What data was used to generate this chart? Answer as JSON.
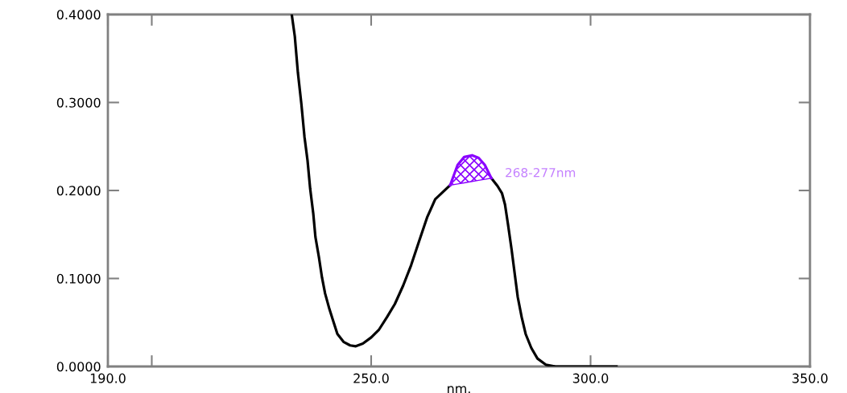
{
  "chart_data": {
    "type": "line",
    "xlabel": "nm.",
    "xlim": [
      190,
      350
    ],
    "xticks": [
      {
        "value": 190,
        "label": "190.0"
      },
      {
        "value": 200,
        "label": null
      },
      {
        "value": 250,
        "label": "250.0"
      },
      {
        "value": 300,
        "label": "300.0"
      },
      {
        "value": 350,
        "label": "350.0"
      }
    ],
    "ylim": [
      0,
      0.4
    ],
    "yticks": [
      {
        "value": 0,
        "label": "0.0000"
      },
      {
        "value": 0.1,
        "label": "0.1000"
      },
      {
        "value": 0.2,
        "label": "0.2000"
      },
      {
        "value": 0.3,
        "label": "0.3000"
      },
      {
        "value": 0.4,
        "label": "0.4000"
      }
    ],
    "grid": false,
    "legend": false,
    "marker": "none",
    "line_style": "solid",
    "series": [
      {
        "color": "#000000",
        "x": [
          231.9,
          232.6,
          233.3,
          234.1,
          234.8,
          235.5,
          236.1,
          236.8,
          237.3,
          238.1,
          238.8,
          239.5,
          240.5,
          241.4,
          242.3,
          243.7,
          245.2,
          246.5,
          248.1,
          250.0,
          251.8,
          253.6,
          255.4,
          257.3,
          259.1,
          260.9,
          262.8,
          264.6,
          268.0,
          269.7,
          271.2,
          273.0,
          274.5,
          275.9,
          277.4,
          278.8,
          279.8,
          280.5,
          281.2,
          282.0,
          282.7,
          283.4,
          284.3,
          285.2,
          286.5,
          287.9,
          289.8,
          292.0,
          305.9
        ],
        "values": [
          0.4,
          0.375,
          0.334,
          0.298,
          0.261,
          0.234,
          0.202,
          0.174,
          0.147,
          0.124,
          0.101,
          0.083,
          0.065,
          0.051,
          0.037,
          0.028,
          0.024,
          0.023,
          0.026,
          0.033,
          0.042,
          0.056,
          0.071,
          0.092,
          0.115,
          0.142,
          0.17,
          0.19,
          0.206,
          null,
          null,
          null,
          null,
          null,
          0.214,
          0.205,
          0.197,
          0.184,
          0.161,
          0.133,
          0.106,
          0.079,
          0.056,
          0.037,
          0.021,
          0.009,
          0.002,
          0.0,
          0.0
        ]
      },
      {
        "color": "#8a00ff",
        "x": [
          268.0,
          269.7,
          271.2,
          273.0,
          274.5,
          275.9,
          277.4
        ],
        "values": [
          0.206,
          0.229,
          0.238,
          0.24,
          0.237,
          0.229,
          0.214
        ],
        "lower": [
          0.206,
          0.2074,
          0.2087,
          0.2103,
          0.2115,
          0.2127,
          0.214
        ],
        "upper": [
          0.206,
          0.229,
          0.238,
          0.24,
          0.237,
          0.229,
          0.214
        ]
      }
    ],
    "annotations": [
      {
        "text": "268-277nm",
        "x": 277.4,
        "y": 0.214
      }
    ]
  }
}
